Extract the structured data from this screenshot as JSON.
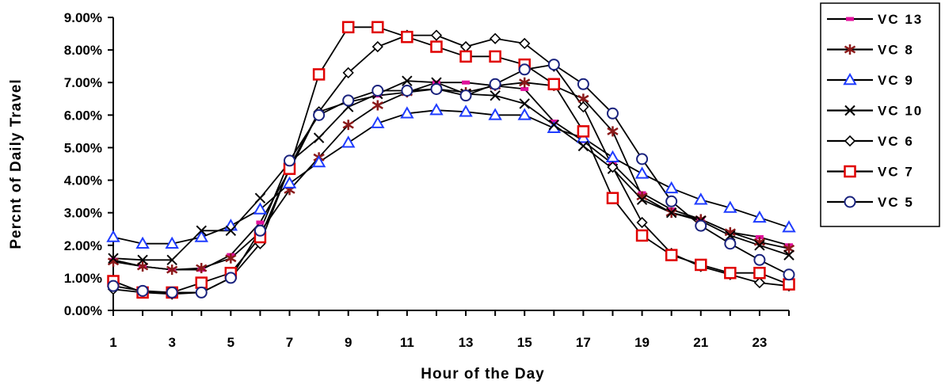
{
  "chart_data": {
    "type": "line",
    "title": "",
    "xlabel": "Hour of the Day",
    "ylabel": "Percnt of Daily Travel",
    "x": [
      1,
      2,
      3,
      4,
      5,
      6,
      7,
      8,
      9,
      10,
      11,
      12,
      13,
      14,
      15,
      16,
      17,
      18,
      19,
      20,
      21,
      22,
      23,
      24
    ],
    "x_ticks": [
      "1",
      "3",
      "5",
      "7",
      "9",
      "11",
      "13",
      "15",
      "17",
      "19",
      "21",
      "23"
    ],
    "xlim": [
      1,
      24
    ],
    "ylim": [
      0,
      9
    ],
    "y_ticks": [
      "0.00%",
      "1.00%",
      "2.00%",
      "3.00%",
      "4.00%",
      "5.00%",
      "6.00%",
      "7.00%",
      "8.00%",
      "9.00%"
    ],
    "grid": false,
    "legend_position": "right",
    "series": [
      {
        "name": "VC 13",
        "marker": "dash",
        "marker_color": "#e0109a",
        "values": [
          1.55,
          1.35,
          1.25,
          1.25,
          1.7,
          2.7,
          4.3,
          6.1,
          6.4,
          6.6,
          6.7,
          7.0,
          7.0,
          6.9,
          6.8,
          5.8,
          5.2,
          4.5,
          3.6,
          3.1,
          2.8,
          2.4,
          2.25,
          2.0
        ]
      },
      {
        "name": "VC 8",
        "marker": "asterisk",
        "marker_color": "#8b1a1a",
        "values": [
          1.5,
          1.35,
          1.25,
          1.3,
          1.6,
          2.4,
          3.7,
          4.7,
          5.7,
          6.3,
          6.7,
          6.8,
          6.7,
          6.9,
          7.0,
          6.9,
          6.5,
          5.5,
          3.5,
          3.0,
          2.8,
          2.4,
          2.1,
          1.9
        ]
      },
      {
        "name": "VC 9",
        "marker": "triangle",
        "marker_color": "#1f3cff",
        "values": [
          2.25,
          2.05,
          2.05,
          2.25,
          2.6,
          3.1,
          3.9,
          4.55,
          5.15,
          5.75,
          6.05,
          6.15,
          6.1,
          6.0,
          6.0,
          5.6,
          5.3,
          4.7,
          4.2,
          3.75,
          3.4,
          3.15,
          2.85,
          2.55
        ]
      },
      {
        "name": "VC 10",
        "marker": "x",
        "marker_color": "#000000",
        "values": [
          1.6,
          1.55,
          1.55,
          2.45,
          2.45,
          3.45,
          4.55,
          5.3,
          6.25,
          6.65,
          7.05,
          7.0,
          6.65,
          6.6,
          6.35,
          5.7,
          5.05,
          4.35,
          3.4,
          3.0,
          2.75,
          2.3,
          2.0,
          1.7
        ]
      },
      {
        "name": "VC 6",
        "marker": "diamond",
        "marker_color": "#000000",
        "values": [
          0.65,
          0.55,
          0.5,
          0.55,
          1.0,
          2.05,
          4.4,
          6.1,
          7.3,
          8.1,
          8.45,
          8.45,
          8.1,
          8.35,
          8.2,
          7.5,
          6.25,
          4.4,
          2.7,
          1.75,
          1.35,
          1.1,
          0.85,
          0.75
        ]
      },
      {
        "name": "VC 7",
        "marker": "square",
        "marker_color": "#e00000",
        "values": [
          0.9,
          0.55,
          0.55,
          0.85,
          1.15,
          2.25,
          4.35,
          7.25,
          8.7,
          8.7,
          8.4,
          8.1,
          7.8,
          7.8,
          7.55,
          6.95,
          5.5,
          3.45,
          2.3,
          1.7,
          1.4,
          1.15,
          1.15,
          0.8
        ]
      },
      {
        "name": "VC 5",
        "marker": "circle",
        "marker_color": "#1a237e",
        "values": [
          0.75,
          0.6,
          0.55,
          0.55,
          1.0,
          2.45,
          4.6,
          6.0,
          6.45,
          6.75,
          6.75,
          6.8,
          6.6,
          6.95,
          7.4,
          7.55,
          6.95,
          6.05,
          4.65,
          3.35,
          2.6,
          2.05,
          1.55,
          1.1
        ]
      }
    ]
  }
}
